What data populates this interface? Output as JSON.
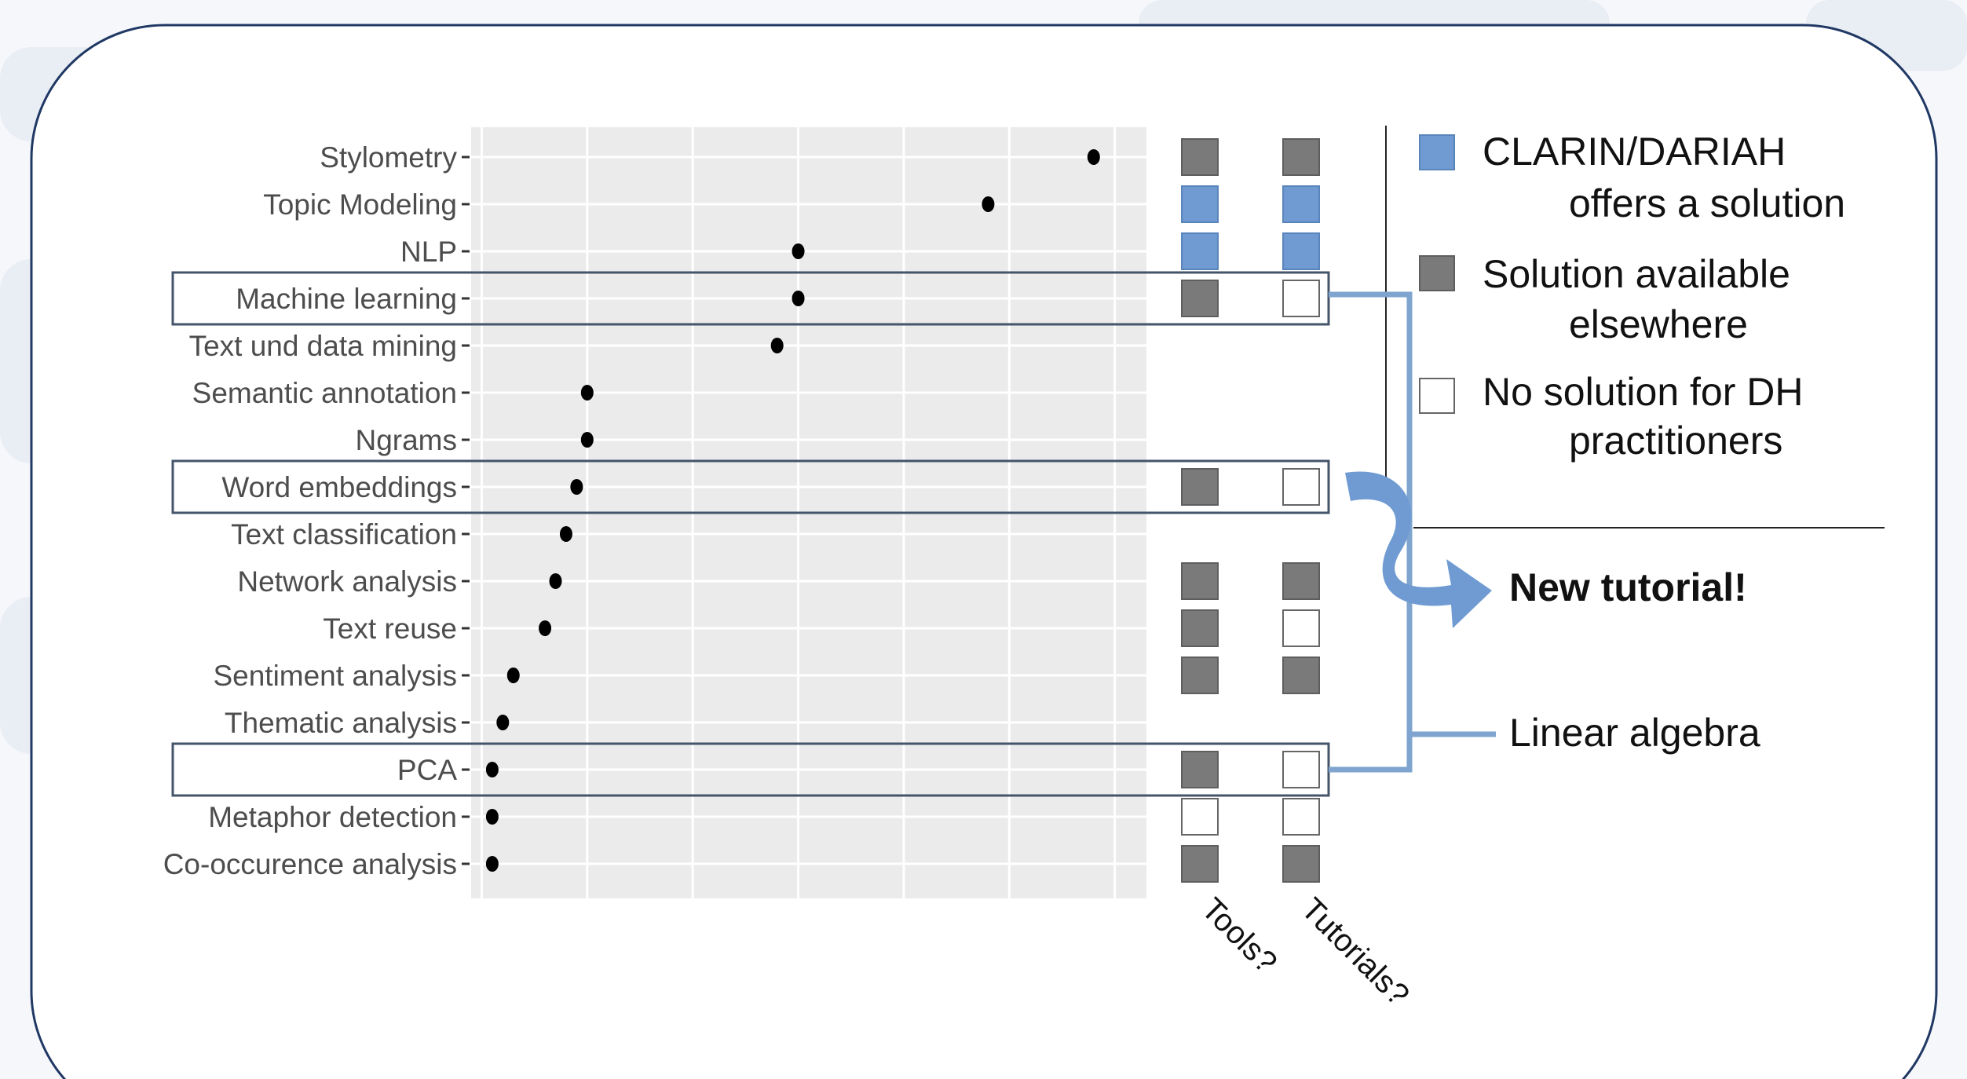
{
  "chart_data": {
    "type": "scatter",
    "categories": [
      "Stylometry",
      "Topic Modeling",
      "NLP",
      "Machine learning",
      "Text und data mining",
      "Semantic annotation",
      "Ngrams",
      "Word embeddings",
      "Text classification",
      "Network analysis",
      "Text reuse",
      "Sentiment analysis",
      "Thematic analysis",
      "PCA",
      "Metaphor detection",
      "Co-occurence analysis"
    ],
    "values": [
      31,
      26,
      17,
      17,
      16,
      7,
      7,
      6.5,
      6,
      5.5,
      5,
      3.5,
      3,
      2.5,
      2.5,
      2.5
    ],
    "xlim": [
      1.5,
      33.5
    ],
    "x_gridlines": [
      2,
      7,
      12,
      17,
      22,
      27,
      32
    ],
    "title": "",
    "xlabel": "",
    "ylabel": "",
    "grid": true,
    "columns": [
      {
        "key": "tools",
        "label": "Tools?"
      },
      {
        "key": "tutorials",
        "label": "Tutorials?"
      }
    ],
    "availability": [
      {
        "tools": "elsewhere",
        "tutorials": "elsewhere"
      },
      {
        "tools": "clarin",
        "tutorials": "clarin"
      },
      {
        "tools": "clarin",
        "tutorials": "clarin"
      },
      {
        "tools": "elsewhere",
        "tutorials": "none"
      },
      {
        "tools": "",
        "tutorials": ""
      },
      {
        "tools": "",
        "tutorials": ""
      },
      {
        "tools": "",
        "tutorials": ""
      },
      {
        "tools": "elsewhere",
        "tutorials": "none"
      },
      {
        "tools": "",
        "tutorials": ""
      },
      {
        "tools": "elsewhere",
        "tutorials": "elsewhere"
      },
      {
        "tools": "elsewhere",
        "tutorials": "none"
      },
      {
        "tools": "elsewhere",
        "tutorials": "elsewhere"
      },
      {
        "tools": "",
        "tutorials": ""
      },
      {
        "tools": "elsewhere",
        "tutorials": "none"
      },
      {
        "tools": "none",
        "tutorials": "none"
      },
      {
        "tools": "elsewhere",
        "tutorials": "elsewhere"
      }
    ],
    "highlighted_rows": [
      "Machine learning",
      "Word embeddings",
      "PCA"
    ],
    "colors": {
      "clarin": "#6f9bd2",
      "elsewhere": "#7a7a7a",
      "none": "#ffffff",
      "panel": "#ebebeb",
      "connector": "#7ea4cf",
      "frame": "#203864",
      "dot": "#000000"
    }
  },
  "legend": {
    "items": [
      {
        "key": "clarin",
        "line1": "CLARIN/DARIAH",
        "line2": "offers a solution"
      },
      {
        "key": "elsewhere",
        "line1": "Solution available",
        "line2": "elsewhere"
      },
      {
        "key": "none",
        "line1": "No solution for DH",
        "line2": "practitioners"
      }
    ]
  },
  "annotations": {
    "new_tutorial": "New tutorial!",
    "linear_algebra": "Linear algebra"
  }
}
